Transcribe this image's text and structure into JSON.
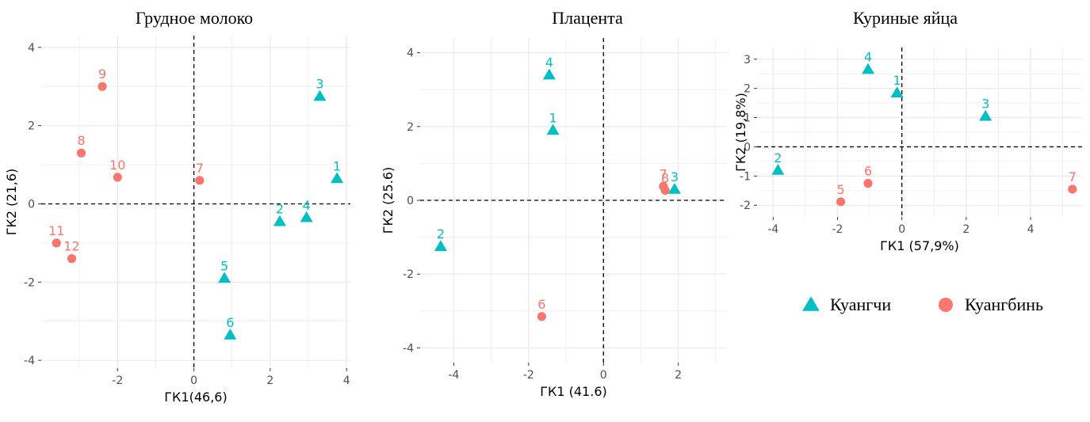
{
  "colors": {
    "kuangchi": "#00BFC4",
    "kuangbin": "#F8766D",
    "grid": "#ebebeb",
    "zero_line": "#000000"
  },
  "legend": {
    "placement": "below right panel",
    "items": [
      {
        "label": "Куангчи",
        "shape": "triangle",
        "color": "#00BFC4"
      },
      {
        "label": "Куангбинь",
        "shape": "circle",
        "color": "#F8766D"
      }
    ]
  },
  "chart_data": [
    {
      "type": "scatter",
      "title": "Грудное молоко",
      "xlabel": "ГК1(46,6)",
      "ylabel": "ГК2 (21,6)",
      "xlim": [
        -4.0,
        4.1
      ],
      "ylim": [
        -4.2,
        4.3
      ],
      "xticks": [
        -2,
        0,
        2,
        4
      ],
      "yticks": [
        -4,
        -2,
        0,
        2,
        4
      ],
      "grid": true,
      "zero_lines": true,
      "series": [
        {
          "name": "Куангчи",
          "shape": "triangle",
          "color": "#00BFC4",
          "points": [
            {
              "label": "1",
              "x": 3.75,
              "y": 0.65
            },
            {
              "label": "2",
              "x": 2.25,
              "y": -0.45
            },
            {
              "label": "3",
              "x": 3.3,
              "y": 2.75
            },
            {
              "label": "4",
              "x": 2.95,
              "y": -0.35
            },
            {
              "label": "5",
              "x": 0.8,
              "y": -1.9
            },
            {
              "label": "6",
              "x": 0.95,
              "y": -3.35
            }
          ]
        },
        {
          "name": "Куангбинь",
          "shape": "circle",
          "color": "#F8766D",
          "points": [
            {
              "label": "7",
              "x": 0.15,
              "y": 0.6
            },
            {
              "label": "8",
              "x": -2.95,
              "y": 1.3
            },
            {
              "label": "9",
              "x": -2.4,
              "y": 3.0
            },
            {
              "label": "10",
              "x": -2.0,
              "y": 0.68
            },
            {
              "label": "11",
              "x": -3.6,
              "y": -1.0
            },
            {
              "label": "12",
              "x": -3.2,
              "y": -1.4
            }
          ]
        }
      ]
    },
    {
      "type": "scatter",
      "title": "Плацента",
      "xlabel": "ГК1 (41.6)",
      "ylabel": "ГК2 (25.6)",
      "xlim": [
        -4.9,
        3.3
      ],
      "ylim": [
        -4.4,
        4.4
      ],
      "xticks": [
        -4,
        -2,
        0,
        2
      ],
      "yticks": [
        -4,
        -2,
        0,
        2,
        4
      ],
      "grid": true,
      "zero_lines": true,
      "series": [
        {
          "name": "Куангчи",
          "shape": "triangle",
          "color": "#00BFC4",
          "points": [
            {
              "label": "1",
              "x": -1.35,
              "y": 1.9
            },
            {
              "label": "2",
              "x": -4.35,
              "y": -1.25
            },
            {
              "label": "3",
              "x": 1.9,
              "y": 0.3
            },
            {
              "label": "4",
              "x": -1.45,
              "y": 3.4
            }
          ]
        },
        {
          "name": "Куангбинь",
          "shape": "circle",
          "color": "#F8766D",
          "points": [
            {
              "label": "6",
              "x": -1.65,
              "y": -3.15
            },
            {
              "label": "7",
              "x": 1.6,
              "y": 0.38
            },
            {
              "label": "8",
              "x": 1.65,
              "y": 0.27
            }
          ]
        }
      ]
    },
    {
      "type": "scatter",
      "title": "Куриные яйца",
      "xlabel": "ГК1 (57,9%)",
      "ylabel": "ГК2 (19,8%)",
      "xlim": [
        -4.5,
        5.6
      ],
      "ylim": [
        -2.4,
        3.4
      ],
      "xticks": [
        -4,
        -2,
        0,
        2,
        4
      ],
      "yticks": [
        -2,
        -1,
        0,
        1,
        2,
        3
      ],
      "grid": true,
      "zero_lines": true,
      "series": [
        {
          "name": "Куангчи",
          "shape": "triangle",
          "color": "#00BFC4",
          "points": [
            {
              "label": "1",
              "x": -0.15,
              "y": 1.85
            },
            {
              "label": "2",
              "x": -3.85,
              "y": -0.8
            },
            {
              "label": "3",
              "x": 2.6,
              "y": 1.05
            },
            {
              "label": "4",
              "x": -1.05,
              "y": 2.65
            }
          ]
        },
        {
          "name": "Куангбинь",
          "shape": "circle",
          "color": "#F8766D",
          "points": [
            {
              "label": "5",
              "x": -1.9,
              "y": -1.88
            },
            {
              "label": "6",
              "x": -1.05,
              "y": -1.25
            },
            {
              "label": "7",
              "x": 5.3,
              "y": -1.45
            }
          ]
        }
      ]
    }
  ]
}
